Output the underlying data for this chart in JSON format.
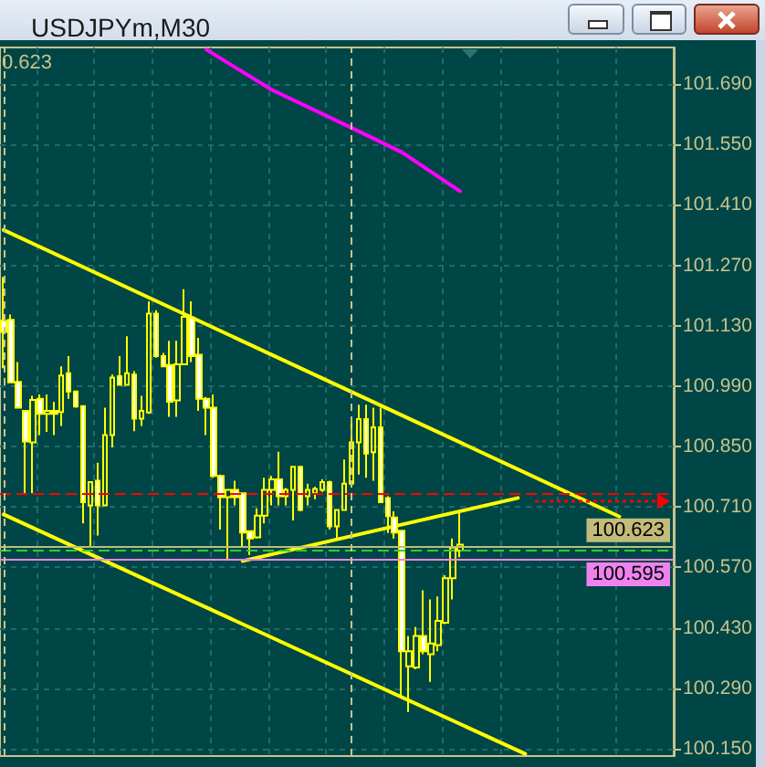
{
  "chart_data": {
    "type": "candlestick",
    "title": "USDJPYm,M30",
    "annotations": [
      "0.623"
    ],
    "categories": [
      null,
      null,
      null,
      null,
      null,
      null,
      null,
      null,
      null,
      null,
      null,
      null,
      null,
      null,
      null,
      null,
      null,
      null,
      null,
      null,
      null,
      null,
      null,
      null,
      null,
      null,
      null,
      null,
      null,
      null,
      null,
      null,
      null,
      null,
      null,
      null,
      null,
      null,
      null,
      null,
      null,
      null,
      null,
      null,
      null,
      null,
      null,
      null,
      null,
      null,
      null,
      null,
      null,
      null,
      null,
      null,
      null,
      null,
      null,
      null,
      null,
      null,
      null,
      null,
      null,
      null,
      null,
      null,
      null,
      null,
      null,
      null,
      null,
      null,
      null,
      null,
      null,
      null,
      null,
      null,
      null,
      null,
      null,
      null,
      null,
      null,
      null,
      null,
      null,
      null,
      null,
      null,
      null
    ],
    "ohlc": [
      [
        101.142,
        101.243,
        101.032,
        101.116
      ],
      [
        101.144,
        101.156,
        100.999,
        100.999
      ],
      [
        101.0,
        101.046,
        100.94,
        100.94
      ],
      [
        100.933,
        100.933,
        100.742,
        100.862
      ],
      [
        100.86,
        100.968,
        100.742,
        100.958
      ],
      [
        100.961,
        100.971,
        100.877,
        100.926
      ],
      [
        100.926,
        100.971,
        100.884,
        100.933
      ],
      [
        100.933,
        100.954,
        100.877,
        100.926
      ],
      [
        100.93,
        101.036,
        100.898,
        101.015
      ],
      [
        101.02,
        101.06,
        100.961,
        100.978
      ],
      [
        100.978,
        100.978,
        100.94,
        100.943
      ],
      [
        100.944,
        100.944,
        100.672,
        100.721
      ],
      [
        100.714,
        100.768,
        100.616,
        100.768
      ],
      [
        100.771,
        100.813,
        100.644,
        100.714
      ],
      [
        100.714,
        100.94,
        100.714,
        100.877
      ],
      [
        100.877,
        101.017,
        100.848,
        101.01
      ],
      [
        101.013,
        101.06,
        100.993,
        100.993
      ],
      [
        100.993,
        101.106,
        100.992,
        101.02
      ],
      [
        101.017,
        101.025,
        100.886,
        100.915
      ],
      [
        100.915,
        100.968,
        100.898,
        100.933
      ],
      [
        100.929,
        101.187,
        100.926,
        101.158
      ],
      [
        101.158,
        101.166,
        101.056,
        101.06
      ],
      [
        101.06,
        101.067,
        101.036,
        101.036
      ],
      [
        101.039,
        101.095,
        100.919,
        100.954
      ],
      [
        100.957,
        101.095,
        100.919,
        101.041
      ],
      [
        101.041,
        101.215,
        101.041,
        101.151
      ],
      [
        101.149,
        101.187,
        101.046,
        101.06
      ],
      [
        101.063,
        101.102,
        100.933,
        100.961
      ],
      [
        100.961,
        100.965,
        100.877,
        100.94
      ],
      [
        100.94,
        100.971,
        100.778,
        100.782
      ],
      [
        100.782,
        100.785,
        100.658,
        100.733
      ],
      [
        100.733,
        100.75,
        100.587,
        100.75
      ],
      [
        100.75,
        100.771,
        100.714,
        100.733
      ],
      [
        100.742,
        100.742,
        100.616,
        100.651
      ],
      [
        100.654,
        100.654,
        100.599,
        100.637
      ],
      [
        100.64,
        100.707,
        100.637,
        100.69
      ],
      [
        100.69,
        100.778,
        100.672,
        100.75
      ],
      [
        100.75,
        100.782,
        100.714,
        100.774
      ],
      [
        100.774,
        100.838,
        100.714,
        100.735
      ],
      [
        100.735,
        100.754,
        100.714,
        100.75
      ],
      [
        100.75,
        100.803,
        100.679,
        100.803
      ],
      [
        100.803,
        100.806,
        100.7,
        100.703
      ],
      [
        100.735,
        100.764,
        100.714,
        100.75
      ],
      [
        100.742,
        100.757,
        100.728,
        100.752
      ],
      [
        100.75,
        100.774,
        100.745,
        100.768
      ],
      [
        100.768,
        100.771,
        100.658,
        100.665
      ],
      [
        100.665,
        100.703,
        100.637,
        100.703
      ],
      [
        100.703,
        100.82,
        100.703,
        100.764
      ],
      [
        100.764,
        100.912,
        100.757,
        100.86
      ],
      [
        100.86,
        100.947,
        100.785,
        100.914
      ],
      [
        100.914,
        100.947,
        100.778,
        100.834
      ],
      [
        100.837,
        100.94,
        100.771,
        100.895
      ],
      [
        100.895,
        100.94,
        100.721,
        100.721
      ],
      [
        100.731,
        100.735,
        100.65,
        100.689
      ],
      [
        100.686,
        100.7,
        100.637,
        100.651
      ],
      [
        100.655,
        100.655,
        100.27,
        100.376
      ],
      [
        100.341,
        100.411,
        100.235,
        100.376
      ],
      [
        100.338,
        100.432,
        100.334,
        100.411
      ],
      [
        100.411,
        100.517,
        100.369,
        100.376
      ],
      [
        100.369,
        100.496,
        100.305,
        100.394
      ],
      [
        100.39,
        100.503,
        100.376,
        100.446
      ],
      [
        100.442,
        100.552,
        100.439,
        100.545
      ],
      [
        100.545,
        100.637,
        100.496,
        100.616
      ],
      [
        100.609,
        100.7,
        100.594,
        100.623
      ],
      null,
      null,
      null,
      null,
      null,
      null,
      null,
      null,
      null,
      null,
      null,
      null,
      null,
      null,
      null,
      null,
      null,
      null,
      null,
      null,
      null,
      null,
      null,
      null,
      null,
      null,
      null,
      null,
      null
    ],
    "color": "#ffff00",
    "series": [
      {
        "type": "line",
        "color": "#ffff00",
        "values": [
          101.352,
          null,
          null,
          null,
          null,
          null,
          null,
          null,
          null,
          null,
          null,
          null,
          null,
          null,
          null,
          null,
          null,
          null,
          null,
          null,
          null,
          null,
          null,
          null,
          null,
          null,
          null,
          null,
          null,
          null,
          null,
          null,
          null,
          null,
          null,
          null,
          null,
          null,
          null,
          null,
          null,
          null,
          null,
          null,
          null,
          null,
          null,
          null,
          null,
          null,
          null,
          null,
          null,
          null,
          null,
          null,
          null,
          null,
          null,
          null,
          null,
          null,
          null,
          null,
          null,
          null,
          null,
          null,
          null,
          null,
          null,
          null,
          null,
          null,
          null,
          null,
          null,
          null,
          null,
          null,
          null,
          null,
          null,
          null,
          null,
          100.688,
          null,
          null,
          null,
          null,
          null,
          null,
          null
        ]
      },
      {
        "type": "line",
        "color": "#ffff00",
        "values": [
          100.693,
          null,
          null,
          null,
          null,
          null,
          null,
          null,
          null,
          null,
          null,
          null,
          null,
          null,
          null,
          null,
          null,
          null,
          null,
          null,
          null,
          null,
          null,
          null,
          null,
          null,
          null,
          null,
          null,
          null,
          null,
          null,
          null,
          null,
          null,
          null,
          null,
          null,
          null,
          null,
          null,
          null,
          null,
          null,
          null,
          null,
          null,
          null,
          null,
          null,
          null,
          null,
          null,
          null,
          null,
          null,
          null,
          null,
          null,
          null,
          null,
          null,
          null,
          null,
          null,
          null,
          null,
          null,
          null,
          null,
          null,
          null,
          100.138,
          null,
          null,
          null,
          null,
          null,
          null,
          null,
          null,
          null,
          null,
          null,
          null,
          null,
          null,
          null,
          null,
          null,
          null,
          null,
          null
        ]
      },
      {
        "type": "line",
        "color": "#ffff00",
        "values": [
          null,
          null,
          null,
          null,
          null,
          null,
          null,
          null,
          null,
          null,
          null,
          null,
          null,
          null,
          null,
          null,
          null,
          null,
          null,
          null,
          null,
          null,
          null,
          null,
          null,
          null,
          null,
          null,
          null,
          null,
          null,
          null,
          null,
          100.585,
          null,
          null,
          null,
          null,
          null,
          null,
          null,
          null,
          null,
          null,
          null,
          null,
          null,
          null,
          null,
          null,
          null,
          null,
          null,
          null,
          null,
          null,
          null,
          null,
          null,
          null,
          null,
          null,
          null,
          null,
          null,
          null,
          null,
          null,
          null,
          null,
          null,
          100.731,
          null,
          null,
          null,
          null,
          null,
          null,
          null,
          null,
          null,
          null,
          null,
          null,
          null,
          null,
          null,
          null,
          null,
          null,
          null,
          null,
          null
        ]
      },
      {
        "type": "line",
        "color": "#ff00ff",
        "values": [
          null,
          null,
          null,
          null,
          null,
          null,
          null,
          null,
          null,
          null,
          null,
          null,
          null,
          null,
          null,
          null,
          null,
          null,
          null,
          null,
          null,
          null,
          null,
          null,
          null,
          null,
          null,
          null,
          101.77,
          null,
          null,
          null,
          null,
          null,
          null,
          null,
          null,
          101.677,
          null,
          null,
          null,
          null,
          null,
          null,
          null,
          null,
          null,
          null,
          101.589,
          null,
          null,
          null,
          null,
          null,
          null,
          101.532,
          null,
          null,
          null,
          null,
          null,
          null,
          null,
          101.442,
          null,
          null,
          null,
          null,
          null,
          null,
          null,
          null,
          null,
          null,
          null,
          null,
          null,
          null,
          null,
          null,
          null,
          null,
          null,
          null,
          null,
          null,
          null,
          null,
          null,
          null,
          null,
          null,
          null
        ]
      }
    ],
    "ylim": [
      100.133,
      101.775
    ],
    "yticks": [
      {
        "value": 100.15,
        "label": "100.150"
      },
      {
        "value": 100.29,
        "label": "100.290"
      },
      {
        "value": 100.43,
        "label": "100.430"
      },
      {
        "value": 100.57,
        "label": "100.570"
      },
      {
        "value": 100.71,
        "label": "100.710"
      },
      {
        "value": 100.85,
        "label": "100.850"
      },
      {
        "value": 100.99,
        "label": "100.990"
      },
      {
        "value": 101.13,
        "label": "101.130"
      },
      {
        "value": 101.27,
        "label": "101.270"
      },
      {
        "value": 101.41,
        "label": "101.410"
      },
      {
        "value": 101.55,
        "label": "101.550"
      },
      {
        "value": 101.69,
        "label": "101.690"
      }
    ],
    "grid": true,
    "tick_labels": "y",
    "ref_lines": [
      {
        "axis": "y",
        "value": 100.741,
        "color": "#ff0000",
        "line_style": "dashed"
      },
      {
        "axis": "y",
        "value": 100.623,
        "label": "100.623",
        "color": "#c3bb7a"
      },
      {
        "axis": "y",
        "value": 100.61,
        "color": "#32cd32",
        "line_style": "dashed"
      },
      {
        "axis": "y",
        "value": 100.595,
        "label": "100.595",
        "color": "#ee82ee"
      }
    ]
  }
}
